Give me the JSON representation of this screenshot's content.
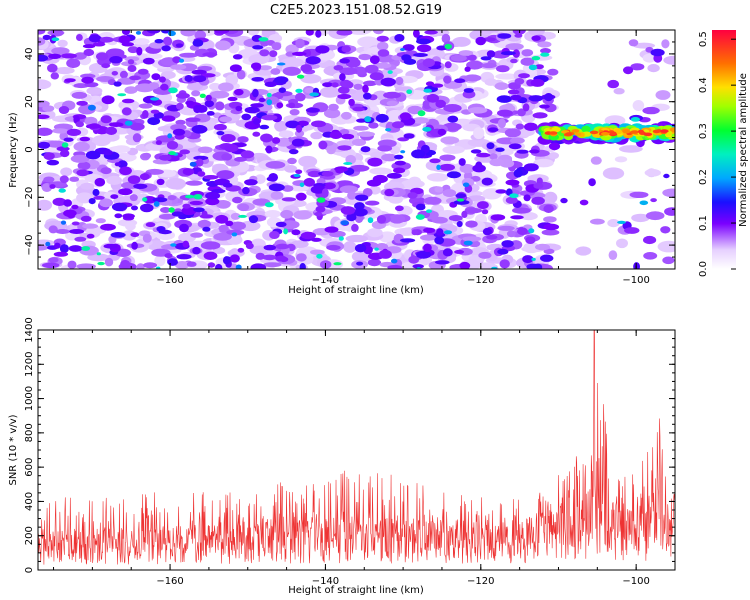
{
  "title": "C2E5.2023.151.08.52.G19",
  "colors": {
    "background": "#ffffff",
    "snr_line": "#ee3333",
    "axis": "#000000"
  },
  "chart_data": [
    {
      "type": "heatmap",
      "name": "spectrogram",
      "xlabel": "Height of straight line (km)",
      "ylabel": "Frequency (Hz)",
      "xlim": [
        -177,
        -95
      ],
      "ylim": [
        -50,
        50
      ],
      "xticks": [
        -160,
        -140,
        -120,
        -100
      ],
      "yticks": [
        -40,
        -20,
        0,
        20,
        40
      ],
      "colorbar": {
        "label": "Normalized spectral amplitude",
        "range": [
          0,
          0.52
        ],
        "ticks": [
          0.0,
          0.1,
          0.2,
          0.3,
          0.4,
          0.5
        ],
        "colormap": "rainbow-with-white-low"
      },
      "features": [
        {
          "kind": "broadband-noise",
          "x_range": [
            -177,
            -111
          ],
          "y_range": [
            -50,
            50
          ],
          "typical_value": 0.1,
          "max_value": 0.2
        },
        {
          "kind": "narrow-band-signal",
          "x_range": [
            -112,
            -95
          ],
          "frequency_hz": 7,
          "bandwidth_hz": 6,
          "value": 0.45
        },
        {
          "kind": "quiet-gap",
          "x_range": [
            -110,
            -103
          ],
          "value": 0.0
        }
      ]
    },
    {
      "type": "line",
      "name": "snr",
      "xlabel": "Height of straight line (km)",
      "ylabel": "SNR (10 * v/v)",
      "xlim": [
        -177,
        -95
      ],
      "ylim": [
        0,
        1400
      ],
      "xticks": [
        -160,
        -140,
        -120,
        -100
      ],
      "yticks": [
        0,
        200,
        400,
        600,
        800,
        1000,
        1200,
        1400
      ],
      "series": [
        {
          "color": "#ee3333",
          "envelope": [
            {
              "x": -177,
              "base": 150,
              "peak": 420
            },
            {
              "x": -160,
              "base": 160,
              "peak": 460
            },
            {
              "x": -145,
              "base": 190,
              "peak": 520
            },
            {
              "x": -136,
              "base": 200,
              "peak": 620
            },
            {
              "x": -125,
              "base": 180,
              "peak": 470
            },
            {
              "x": -116,
              "base": 160,
              "peak": 420
            },
            {
              "x": -110,
              "base": 250,
              "peak": 560
            },
            {
              "x": -106,
              "base": 300,
              "peak": 760
            },
            {
              "x": -105.4,
              "base": 500,
              "peak": 1400
            },
            {
              "x": -103,
              "base": 250,
              "peak": 600
            },
            {
              "x": -100,
              "base": 220,
              "peak": 550
            },
            {
              "x": -97,
              "base": 300,
              "peak": 980
            },
            {
              "x": -95,
              "base": 300,
              "peak": 650
            }
          ]
        }
      ]
    }
  ]
}
